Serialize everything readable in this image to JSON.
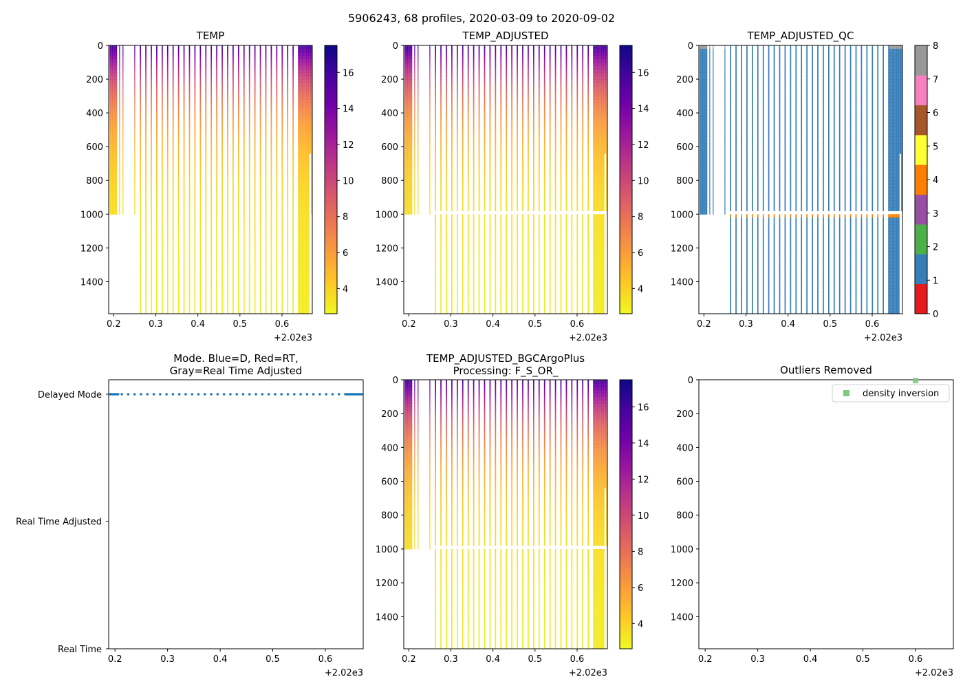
{
  "suptitle": "5906243, 68 profiles, 2020-03-09 to 2020-09-02",
  "colormap": {
    "name": "plasma_r",
    "stops": [
      "#f0f921",
      "#fdca26",
      "#fb9f3a",
      "#ed7953",
      "#d8576b",
      "#bd3786",
      "#9c179e",
      "#7201a8",
      "#46039f",
      "#0d0887"
    ]
  },
  "qc_colors": [
    "#e41a1c",
    "#377eb8",
    "#4daf4a",
    "#984ea3",
    "#ff7f00",
    "#ffff33",
    "#a65628",
    "#f781bf",
    "#999999"
  ],
  "offset_label": "+2.02e3",
  "chart_data": [
    {
      "id": "temp",
      "type": "heatmap",
      "title": "TEMP",
      "xlim": [
        0.188,
        0.672
      ],
      "xticks": [
        "0.2",
        "0.3",
        "0.4",
        "0.5",
        "0.6"
      ],
      "ylim": [
        1590,
        0
      ],
      "yticks": [
        "0",
        "200",
        "400",
        "600",
        "800",
        "1000",
        "1200",
        "1400"
      ],
      "colorbar": {
        "range": [
          2.6,
          17.5
        ],
        "ticks": [
          "4",
          "6",
          "8",
          "10",
          "12",
          "14",
          "16"
        ]
      },
      "surface_temp": 15.5,
      "deep_temp": 3.0,
      "profiles_early": {
        "x_range": [
          0.19,
          0.208
        ],
        "bottom": 1000
      },
      "profiles_mid": {
        "x_start": 0.262,
        "x_end": 0.638,
        "count": 30,
        "bottom": 1590,
        "note": "short profiles before 0.26 end at 1000 dbar"
      },
      "profiles_late": {
        "x_range": [
          0.64,
          0.672
        ],
        "bottom": 1590
      }
    },
    {
      "id": "temp_adj",
      "type": "heatmap",
      "title": "TEMP_ADJUSTED",
      "xlim": [
        0.188,
        0.672
      ],
      "xticks": [
        "0.2",
        "0.3",
        "0.4",
        "0.5",
        "0.6"
      ],
      "ylim": [
        1590,
        0
      ],
      "yticks": [
        "0",
        "200",
        "400",
        "600",
        "800",
        "1000",
        "1200",
        "1400"
      ],
      "colorbar": {
        "range": [
          2.6,
          17.5
        ],
        "ticks": [
          "4",
          "6",
          "8",
          "10",
          "12",
          "14",
          "16"
        ]
      },
      "gap_depth": [
        980,
        1000
      ]
    },
    {
      "id": "temp_qc",
      "type": "heatmap",
      "title": "TEMP_ADJUSTED_QC",
      "xlim": [
        0.188,
        0.672
      ],
      "xticks": [
        "0.2",
        "0.3",
        "0.4",
        "0.5",
        "0.6"
      ],
      "ylim": [
        1590,
        0
      ],
      "yticks": [
        "0",
        "200",
        "400",
        "600",
        "800",
        "1000",
        "1200",
        "1400"
      ],
      "colorbar": {
        "range": [
          0,
          8
        ],
        "ticks": [
          "0",
          "1",
          "2",
          "3",
          "4",
          "5",
          "6",
          "7",
          "8"
        ]
      },
      "dominant_flag": 1,
      "flag_4_depth": 1000
    },
    {
      "id": "mode",
      "type": "scatter",
      "title": "Mode. Blue=D, Red=RT,",
      "title2": "Gray=Real Time Adjusted",
      "xlim": [
        0.188,
        0.672
      ],
      "xticks": [
        "0.2",
        "0.3",
        "0.4",
        "0.5",
        "0.6"
      ],
      "ylabels": [
        "Delayed Mode",
        "Real Time Adjusted",
        "Real Time"
      ],
      "points_mode": "Delayed Mode",
      "points_x_start": 0.19,
      "points_x_end": 0.672,
      "count": 68
    },
    {
      "id": "bgc",
      "type": "heatmap",
      "title": "TEMP_ADJUSTED_BGCArgoPlus",
      "title2": "Processing: F_S_OR_",
      "xlim": [
        0.188,
        0.672
      ],
      "xticks": [
        "0.2",
        "0.3",
        "0.4",
        "0.5",
        "0.6"
      ],
      "ylim": [
        1590,
        0
      ],
      "yticks": [
        "0",
        "200",
        "400",
        "600",
        "800",
        "1000",
        "1200",
        "1400"
      ],
      "colorbar": {
        "range": [
          2.6,
          17.5
        ],
        "ticks": [
          "4",
          "6",
          "8",
          "10",
          "12",
          "14",
          "16"
        ]
      }
    },
    {
      "id": "outliers",
      "type": "scatter",
      "title": "Outliers Removed",
      "xlim": [
        0.188,
        0.672
      ],
      "xticks": [
        "0.2",
        "0.3",
        "0.4",
        "0.5",
        "0.6"
      ],
      "ylim": [
        1590,
        0
      ],
      "yticks": [
        "0",
        "200",
        "400",
        "600",
        "800",
        "1000",
        "1200",
        "1400"
      ],
      "legend": "density inversion",
      "legend_position": "top-right",
      "points": [
        {
          "x": 0.6,
          "y": 5
        }
      ]
    }
  ]
}
